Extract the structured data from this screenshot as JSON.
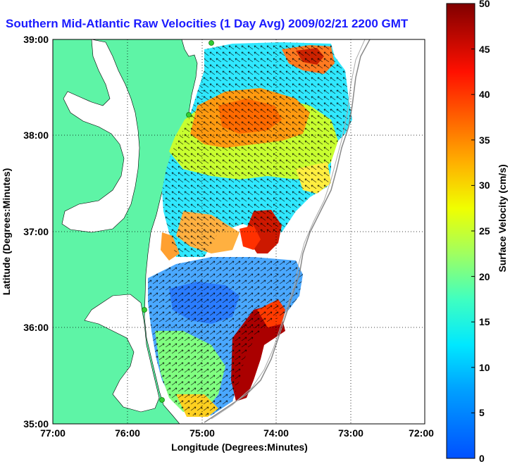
{
  "title": "Southern Mid-Atlantic Raw Velocities (1 Day Avg) 2009/02/21 2200 GMT",
  "x_axis": {
    "label": "Longitude (Degrees:Minutes)",
    "ticks": [
      "77:00",
      "76:00",
      "75:00",
      "74:00",
      "73:00",
      "72:00"
    ]
  },
  "y_axis": {
    "label": "Latitude (Degrees:Minutes)",
    "ticks": [
      "39:00",
      "38:00",
      "37:00",
      "36:00",
      "35:00"
    ]
  },
  "colorbar": {
    "label": "Surface Velocity (cm/s)",
    "ticks": [
      "50",
      "45",
      "40",
      "35",
      "30",
      "25",
      "20",
      "15",
      "10",
      "5",
      "0"
    ],
    "min": 0,
    "max": 50
  },
  "colors": {
    "land": "#5ef4a6",
    "title": "#1a1aff",
    "station": "#33cc33"
  }
}
